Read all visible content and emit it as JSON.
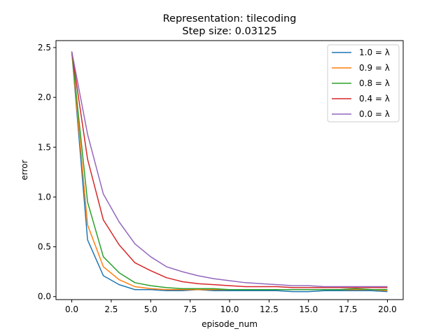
{
  "chart_data": {
    "type": "line",
    "title_line1": "Representation: tilecoding",
    "title_line2": "Step size: 0.03125",
    "xlabel": "episode_num",
    "ylabel": "error",
    "xlim": [
      -1,
      21
    ],
    "ylim": [
      -0.03,
      2.57
    ],
    "xticks": [
      0,
      2.5,
      5,
      7.5,
      10,
      12.5,
      15,
      17.5,
      20
    ],
    "xtick_labels": [
      "0.0",
      "2.5",
      "5.0",
      "7.5",
      "10.0",
      "12.5",
      "15.0",
      "17.5",
      "20.0"
    ],
    "yticks": [
      0,
      0.5,
      1,
      1.5,
      2,
      2.5
    ],
    "ytick_labels": [
      "0.0",
      "0.5",
      "1.0",
      "1.5",
      "2.0",
      "2.5"
    ],
    "legend_position": "top-right",
    "x": [
      0,
      1,
      2,
      3,
      4,
      5,
      6,
      7,
      8,
      9,
      10,
      11,
      12,
      13,
      14,
      15,
      16,
      17,
      18,
      19,
      20
    ],
    "series": [
      {
        "name": "1.0 = λ",
        "color": "#1f77b4",
        "values": [
          2.46,
          0.57,
          0.21,
          0.12,
          0.07,
          0.07,
          0.06,
          0.06,
          0.07,
          0.06,
          0.06,
          0.06,
          0.06,
          0.06,
          0.05,
          0.05,
          0.06,
          0.06,
          0.06,
          0.06,
          0.05
        ]
      },
      {
        "name": "0.9 = λ",
        "color": "#ff7f0e",
        "values": [
          2.46,
          0.72,
          0.3,
          0.17,
          0.1,
          0.08,
          0.07,
          0.07,
          0.07,
          0.07,
          0.07,
          0.07,
          0.07,
          0.07,
          0.07,
          0.07,
          0.07,
          0.07,
          0.07,
          0.07,
          0.06
        ]
      },
      {
        "name": "0.8 = λ",
        "color": "#2ca02c",
        "values": [
          2.46,
          0.95,
          0.4,
          0.24,
          0.14,
          0.11,
          0.09,
          0.08,
          0.08,
          0.08,
          0.07,
          0.07,
          0.07,
          0.07,
          0.07,
          0.07,
          0.07,
          0.07,
          0.08,
          0.07,
          0.07
        ]
      },
      {
        "name": "0.4 = λ",
        "color": "#d62728",
        "values": [
          2.46,
          1.38,
          0.77,
          0.52,
          0.34,
          0.26,
          0.19,
          0.15,
          0.13,
          0.12,
          0.11,
          0.1,
          0.1,
          0.1,
          0.09,
          0.09,
          0.09,
          0.09,
          0.09,
          0.09,
          0.09
        ]
      },
      {
        "name": "0.0 = λ",
        "color": "#9467bd",
        "values": [
          2.46,
          1.63,
          1.03,
          0.75,
          0.53,
          0.4,
          0.3,
          0.25,
          0.21,
          0.18,
          0.16,
          0.14,
          0.13,
          0.12,
          0.11,
          0.11,
          0.1,
          0.1,
          0.1,
          0.1,
          0.1
        ]
      }
    ]
  }
}
